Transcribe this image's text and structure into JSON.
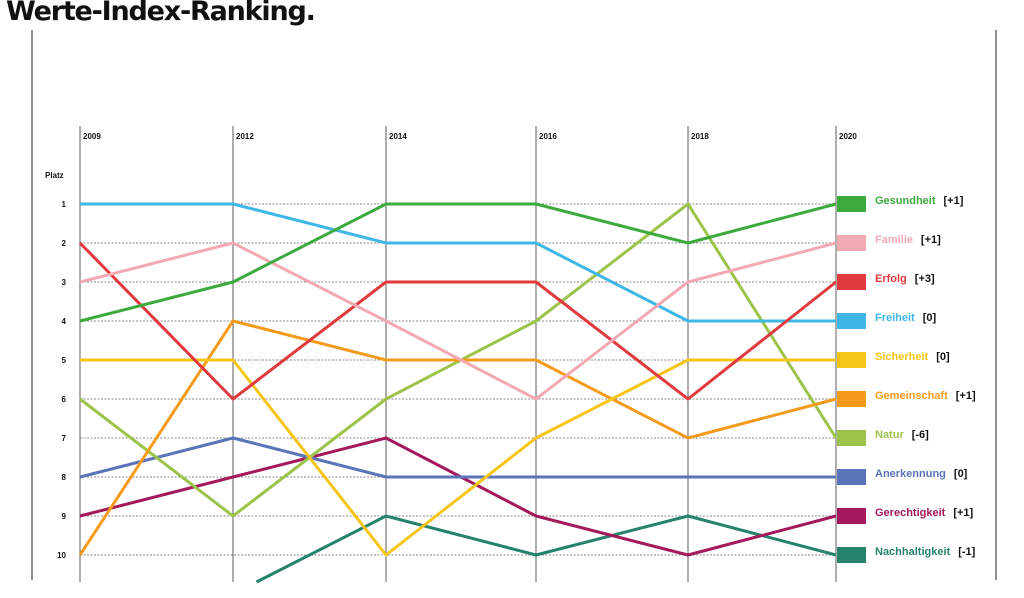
{
  "title": "Werte-Index-Ranking.",
  "chart_data": {
    "type": "line",
    "title": "Werte-Index-Ranking.",
    "ylabel": "Platz",
    "x": [
      "2009",
      "2012",
      "2014",
      "2016",
      "2018",
      "2020"
    ],
    "y_ticks": [
      "1",
      "2",
      "3",
      "4",
      "5",
      "6",
      "7",
      "8",
      "9",
      "10"
    ],
    "ylim": [
      1,
      10
    ],
    "y_inverted": true,
    "grid": true,
    "legend_placement": "right",
    "series": [
      {
        "name": "Gesundheit",
        "delta": "[+1]",
        "color": "#3daa3d",
        "values": [
          4,
          3,
          1,
          1,
          2,
          1
        ]
      },
      {
        "name": "Familie",
        "delta": "[+1]",
        "color": "#f2a9b4",
        "values": [
          3,
          2,
          4,
          6,
          3,
          2
        ]
      },
      {
        "name": "Erfolg",
        "delta": "[+3]",
        "color": "#e03a3e",
        "values": [
          2,
          6,
          3,
          3,
          6,
          3
        ]
      },
      {
        "name": "Freiheit",
        "delta": "[0]",
        "color": "#3fb7e6",
        "values": [
          1,
          1,
          2,
          2,
          4,
          4
        ]
      },
      {
        "name": "Sicherheit",
        "delta": "[0]",
        "color": "#f5c518",
        "values": [
          5,
          5,
          10,
          7,
          5,
          5
        ]
      },
      {
        "name": "Gemeinschaft",
        "delta": "[+1]",
        "color": "#f59b1c",
        "values": [
          10,
          4,
          5,
          5,
          7,
          6
        ]
      },
      {
        "name": "Natur",
        "delta": "[-6]",
        "color": "#9dc34a",
        "values": [
          6,
          9,
          6,
          4,
          1,
          7
        ]
      },
      {
        "name": "Anerkennung",
        "delta": "[0]",
        "color": "#5b73b8",
        "values": [
          8,
          7,
          8,
          8,
          8,
          8
        ]
      },
      {
        "name": "Gerechtigkeit",
        "delta": "[+1]",
        "color": "#a3195b",
        "values": [
          9,
          8,
          7,
          9,
          10,
          9
        ]
      },
      {
        "name": "Nachhaltigkeit",
        "delta": "[-1]",
        "color": "#26836b",
        "values": [
          null,
          11,
          9,
          10,
          9,
          10
        ]
      }
    ]
  }
}
